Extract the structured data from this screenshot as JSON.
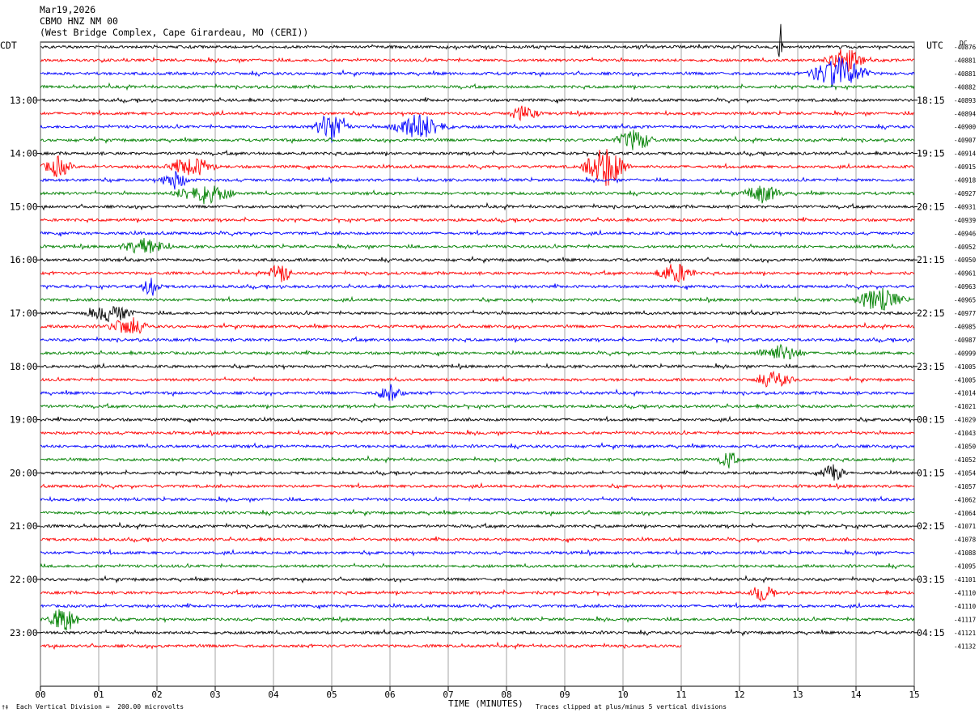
{
  "header": {
    "date": "Mar19,2026",
    "station": "CBMO HNZ NM 00",
    "location": "(West Bridge Complex, Cape Girardeau, MO (CERI))"
  },
  "left_tz": "CDT",
  "right_tz": "UTC",
  "dc_label": "DC",
  "footer": {
    "scale": "Each Vertical Division =  200.00 microvolts",
    "xlabel": "TIME (MINUTES)",
    "clip": "Traces clipped at plus/minus 5 vertical divisions",
    "mark": "†‡"
  },
  "colors": {
    "trace_cycle": [
      "#000000",
      "#ff0000",
      "#0000ff",
      "#008000"
    ],
    "grid": "#808080"
  },
  "chart_data": {
    "type": "line",
    "title": "CBMO HNZ NM 00",
    "xlabel": "TIME (MINUTES)",
    "xlim": [
      0,
      15
    ],
    "x_ticks": [
      "00",
      "01",
      "02",
      "03",
      "04",
      "05",
      "06",
      "07",
      "08",
      "09",
      "10",
      "11",
      "12",
      "13",
      "14",
      "15"
    ],
    "left_hour_labels": [
      "13:00",
      "14:00",
      "15:00",
      "16:00",
      "17:00",
      "18:00",
      "19:00",
      "20:00",
      "21:00",
      "22:00",
      "23:00"
    ],
    "right_hour_labels": [
      "18:15",
      "19:15",
      "20:15",
      "21:15",
      "22:15",
      "23:15",
      "00:15",
      "01:15",
      "02:15",
      "03:15",
      "04:15"
    ],
    "dc_offsets": [
      "-40876",
      "-40881",
      "-40881",
      "-40882",
      "-40893",
      "-40894",
      "-40900",
      "-40907",
      "-40914",
      "-40915",
      "-40918",
      "-40927",
      "-40931",
      "-40939",
      "-40946",
      "-40952",
      "-40950",
      "-40961",
      "-40963",
      "-40965",
      "-40977",
      "-40985",
      "-40987",
      "-40999",
      "-41005",
      "-41005",
      "-41014",
      "-41021",
      "-41029",
      "-41043",
      "-41050",
      "-41052",
      "-41054",
      "-41057",
      "-41062",
      "-41064",
      "-41071",
      "-41078",
      "-41088",
      "-41095",
      "-41101",
      "-41110",
      "-41110",
      "-41117",
      "-41121",
      "-41132"
    ],
    "trace_count": 46,
    "minutes_per_trace": 15,
    "last_trace_end_minute": 11.0,
    "events": [
      {
        "trace": 0,
        "minute": 12.7,
        "amp": 3.2,
        "dur": 0.05
      },
      {
        "trace": 1,
        "minute": 13.8,
        "amp": 1.6,
        "dur": 0.4
      },
      {
        "trace": 2,
        "minute": 13.7,
        "amp": 2.0,
        "dur": 0.6
      },
      {
        "trace": 5,
        "minute": 8.3,
        "amp": 1.1,
        "dur": 0.3
      },
      {
        "trace": 6,
        "minute": 5.0,
        "amp": 2.0,
        "dur": 0.35
      },
      {
        "trace": 6,
        "minute": 6.5,
        "amp": 1.6,
        "dur": 0.6
      },
      {
        "trace": 7,
        "minute": 10.2,
        "amp": 1.3,
        "dur": 0.4
      },
      {
        "trace": 9,
        "minute": 9.7,
        "amp": 2.6,
        "dur": 0.45
      },
      {
        "trace": 9,
        "minute": 0.3,
        "amp": 1.3,
        "dur": 0.3
      },
      {
        "trace": 9,
        "minute": 2.6,
        "amp": 1.2,
        "dur": 0.5
      },
      {
        "trace": 10,
        "minute": 2.3,
        "amp": 1.1,
        "dur": 0.3
      },
      {
        "trace": 11,
        "minute": 2.8,
        "amp": 1.3,
        "dur": 0.6
      },
      {
        "trace": 11,
        "minute": 12.4,
        "amp": 1.1,
        "dur": 0.4
      },
      {
        "trace": 15,
        "minute": 1.8,
        "amp": 1.0,
        "dur": 0.5
      },
      {
        "trace": 17,
        "minute": 4.1,
        "amp": 1.6,
        "dur": 0.25
      },
      {
        "trace": 17,
        "minute": 10.9,
        "amp": 1.3,
        "dur": 0.4
      },
      {
        "trace": 18,
        "minute": 1.9,
        "amp": 1.2,
        "dur": 0.2
      },
      {
        "trace": 19,
        "minute": 14.4,
        "amp": 1.5,
        "dur": 0.5
      },
      {
        "trace": 20,
        "minute": 1.2,
        "amp": 1.0,
        "dur": 0.5
      },
      {
        "trace": 21,
        "minute": 1.5,
        "amp": 1.1,
        "dur": 0.4
      },
      {
        "trace": 23,
        "minute": 12.7,
        "amp": 1.0,
        "dur": 0.5
      },
      {
        "trace": 25,
        "minute": 12.6,
        "amp": 0.9,
        "dur": 0.4
      },
      {
        "trace": 26,
        "minute": 6.0,
        "amp": 1.0,
        "dur": 0.3
      },
      {
        "trace": 31,
        "minute": 11.8,
        "amp": 1.1,
        "dur": 0.2
      },
      {
        "trace": 32,
        "minute": 13.6,
        "amp": 1.1,
        "dur": 0.25
      },
      {
        "trace": 43,
        "minute": 0.4,
        "amp": 1.8,
        "dur": 0.3
      },
      {
        "trace": 41,
        "minute": 12.4,
        "amp": 1.0,
        "dur": 0.25
      }
    ]
  }
}
